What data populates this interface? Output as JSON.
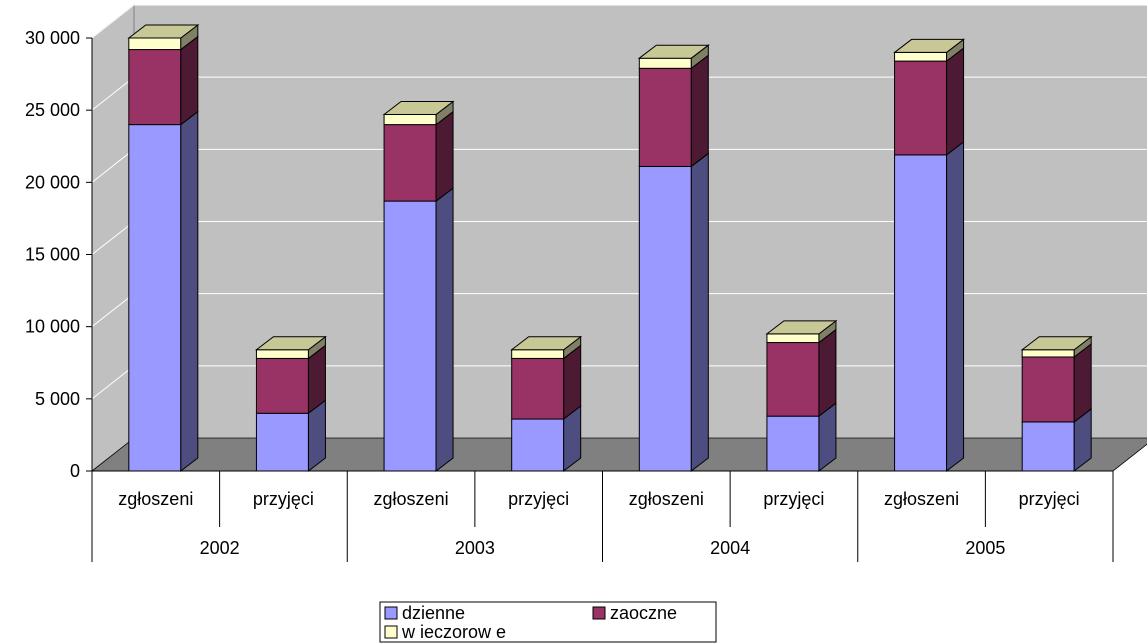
{
  "chart_data": {
    "type": "bar",
    "stacked": true,
    "three_d": true,
    "groups": [
      "2002",
      "2003",
      "2004",
      "2005"
    ],
    "categories": [
      "zgłoszeni",
      "przyjęci",
      "zgłoszeni",
      "przyjęci",
      "zgłoszeni",
      "przyjęci",
      "zgłoszeni",
      "przyjęci"
    ],
    "series": [
      {
        "name": "dzienne",
        "color": "#9999ff",
        "values": [
          24000,
          4000,
          18700,
          3600,
          21100,
          3800,
          21900,
          3400
        ]
      },
      {
        "name": "zaoczne",
        "color": "#993366",
        "values": [
          5200,
          3800,
          5300,
          4200,
          6800,
          5100,
          6500,
          4500
        ]
      },
      {
        "name": "w ieczorow e",
        "color": "#ffffcc",
        "values": [
          800,
          600,
          700,
          600,
          700,
          600,
          600,
          500
        ]
      }
    ],
    "y_tick_labels": [
      "0",
      "5 000",
      "10 000",
      "15 000",
      "20 000",
      "25 000",
      "30 000"
    ],
    "ylim": [
      0,
      30000
    ],
    "grid": true,
    "legend_position": "bottom",
    "colors": {
      "wall": "#c0c0c0",
      "floor": "#808080",
      "gridline": "#ffffff"
    }
  }
}
